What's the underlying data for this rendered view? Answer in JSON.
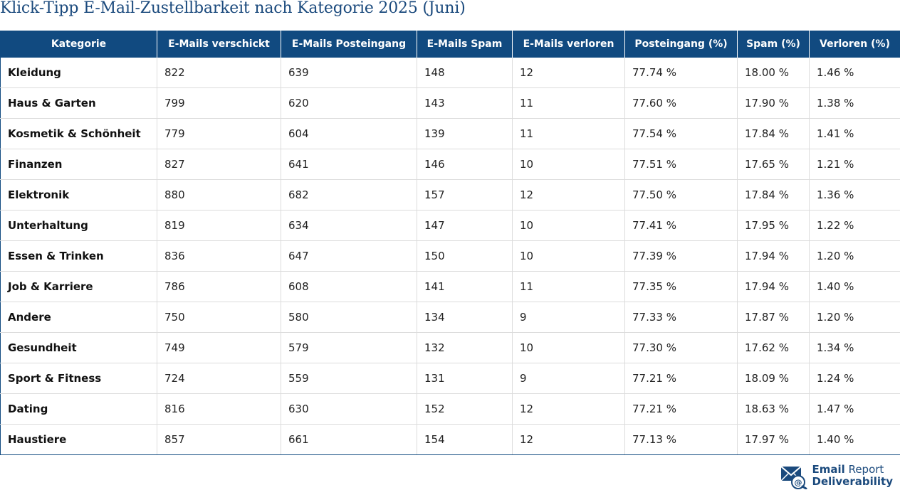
{
  "title": "Klick-Tipp E-Mail-Zustellbarkeit nach Kategorie 2025 (Juni)",
  "table": {
    "headers": [
      "Kategorie",
      "E-Mails verschickt",
      "E-Mails Posteingang",
      "E-Mails Spam",
      "E-Mails verloren",
      "Posteingang (%)",
      "Spam (%)",
      "Verloren (%)"
    ],
    "rows": [
      [
        "Kleidung",
        "822",
        "639",
        "148",
        "12",
        "77.74 %",
        "18.00 %",
        "1.46 %"
      ],
      [
        "Haus & Garten",
        "799",
        "620",
        "143",
        "11",
        "77.60 %",
        "17.90 %",
        "1.38 %"
      ],
      [
        "Kosmetik & Schönheit",
        "779",
        "604",
        "139",
        "11",
        "77.54 %",
        "17.84 %",
        "1.41 %"
      ],
      [
        "Finanzen",
        "827",
        "641",
        "146",
        "10",
        "77.51 %",
        "17.65 %",
        "1.21 %"
      ],
      [
        "Elektronik",
        "880",
        "682",
        "157",
        "12",
        "77.50 %",
        "17.84 %",
        "1.36 %"
      ],
      [
        "Unterhaltung",
        "819",
        "634",
        "147",
        "10",
        "77.41 %",
        "17.95 %",
        "1.22 %"
      ],
      [
        "Essen & Trinken",
        "836",
        "647",
        "150",
        "10",
        "77.39 %",
        "17.94 %",
        "1.20 %"
      ],
      [
        "Job & Karriere",
        "786",
        "608",
        "141",
        "11",
        "77.35 %",
        "17.94 %",
        "1.40 %"
      ],
      [
        "Andere",
        "750",
        "580",
        "134",
        "9",
        "77.33 %",
        "17.87 %",
        "1.20 %"
      ],
      [
        "Gesundheit",
        "749",
        "579",
        "132",
        "10",
        "77.30 %",
        "17.62 %",
        "1.34 %"
      ],
      [
        "Sport & Fitness",
        "724",
        "559",
        "131",
        "9",
        "77.21 %",
        "18.09 %",
        "1.24 %"
      ],
      [
        "Dating",
        "816",
        "630",
        "152",
        "12",
        "77.21 %",
        "18.63 %",
        "1.47 %"
      ],
      [
        "Haustiere",
        "857",
        "661",
        "154",
        "12",
        "77.13 %",
        "17.97 %",
        "1.40 %"
      ]
    ]
  },
  "brand": {
    "line1_bold": "Email",
    "line1_regular": "Report",
    "line2": "Deliverability",
    "logo_icon": "envelope-at-icon",
    "color": "#1b4a7d"
  },
  "colors": {
    "header_bg": "#114a80",
    "title": "#1b4a7d"
  }
}
